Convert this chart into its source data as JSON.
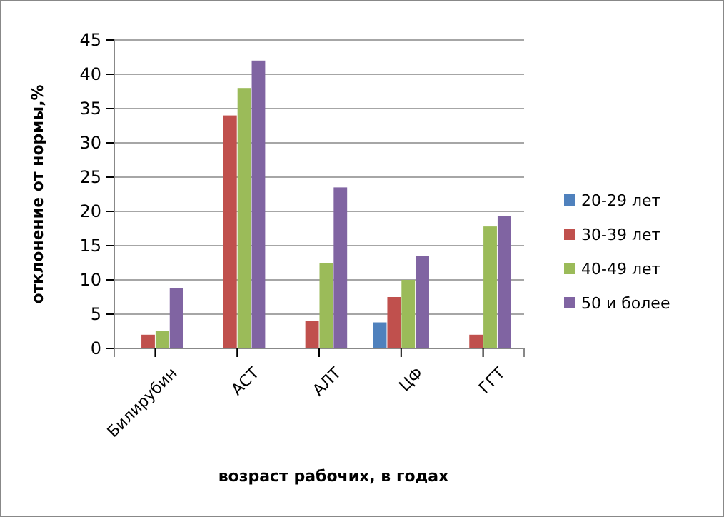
{
  "chart_data": {
    "type": "bar",
    "xlabel": "возраст рабочих,  в годах",
    "ylabel": "отклонение от нормы,%",
    "categories": [
      "Билирубин",
      "АСТ",
      "АЛТ",
      "ЦФ",
      "ГГТ"
    ],
    "series": [
      {
        "name": "20-29 лет",
        "color": "#4f81bd",
        "values": [
          0,
          0,
          0,
          3.8,
          0
        ]
      },
      {
        "name": "30-39 лет",
        "color": "#c0504d",
        "values": [
          2,
          34,
          4,
          7.5,
          2
        ]
      },
      {
        "name": "40-49 лет",
        "color": "#9bbb59",
        "values": [
          2.5,
          38,
          12.5,
          10,
          17.8
        ]
      },
      {
        "name": "50 и более",
        "color": "#8064a2",
        "values": [
          8.8,
          42,
          23.5,
          13.5,
          19.3
        ]
      }
    ],
    "ylim": [
      0,
      45
    ],
    "yticks": [
      0,
      5,
      10,
      15,
      20,
      25,
      30,
      35,
      40,
      45
    ],
    "grid": "y",
    "legend": "right"
  }
}
